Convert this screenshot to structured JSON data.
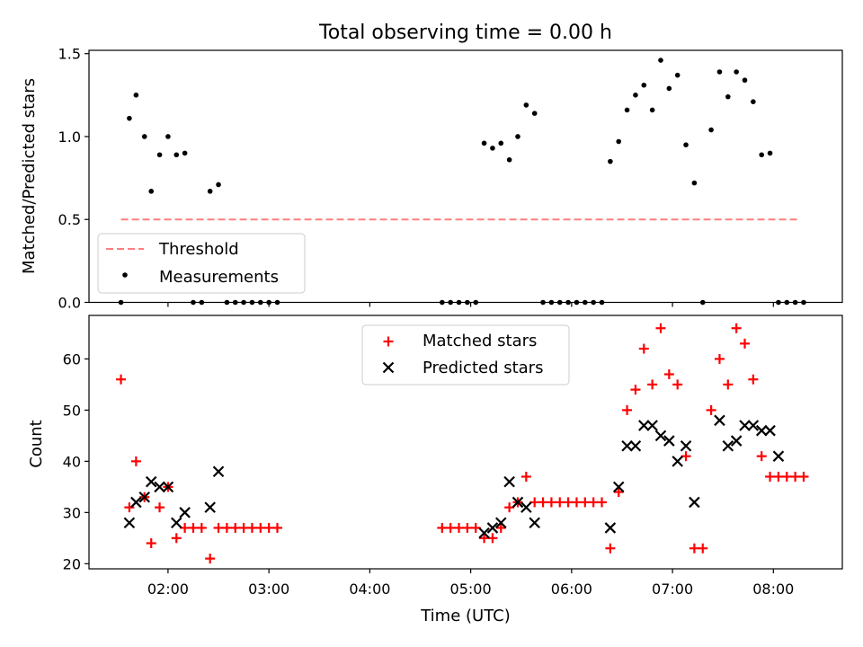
{
  "chart_data": [
    {
      "type": "scatter",
      "title": "Total observing time = 0.00 h",
      "ylabel": "Matched/Predicted stars",
      "xlabel": "",
      "ylim": [
        0,
        1.52
      ],
      "xlim": [
        "01:13",
        "08:41"
      ],
      "yticks": [
        "0.0",
        "0.5",
        "1.0",
        "1.5"
      ],
      "grid": false,
      "legend": {
        "placement": "lower left",
        "entries": [
          "Threshold",
          "Measurements"
        ]
      },
      "threshold": {
        "name": "Threshold",
        "value": 0.5,
        "x": [
          "01:32",
          "08:16"
        ],
        "color": "#ff7f7f",
        "style": "dashed"
      },
      "series": [
        {
          "name": "Measurements",
          "marker": "dot",
          "color": "#000000",
          "x": [
            "01:32",
            "01:37",
            "01:41",
            "01:46",
            "01:50",
            "01:55",
            "02:00",
            "02:05",
            "02:10",
            "02:15",
            "02:20",
            "02:25",
            "02:30",
            "02:35",
            "02:40",
            "02:45",
            "02:50",
            "02:55",
            "03:00",
            "03:05",
            "04:43",
            "04:48",
            "04:53",
            "04:58",
            "05:03",
            "05:08",
            "05:13",
            "05:18",
            "05:23",
            "05:28",
            "05:33",
            "05:38",
            "05:43",
            "05:48",
            "05:53",
            "05:58",
            "06:03",
            "06:08",
            "06:13",
            "06:18",
            "06:23",
            "06:28",
            "06:33",
            "06:38",
            "06:43",
            "06:48",
            "06:53",
            "06:58",
            "07:03",
            "07:08",
            "07:13",
            "07:18",
            "07:23",
            "07:28",
            "07:33",
            "07:38",
            "07:43",
            "07:48",
            "07:53",
            "07:58",
            "08:03",
            "08:08",
            "08:13",
            "08:18"
          ],
          "y": [
            0.0,
            1.11,
            1.25,
            1.0,
            0.67,
            0.89,
            1.0,
            0.89,
            0.9,
            0.0,
            0.0,
            0.67,
            0.71,
            0.0,
            0.0,
            0.0,
            0.0,
            0.0,
            0.0,
            0.0,
            0.0,
            0.0,
            0.0,
            0.0,
            0.0,
            0.96,
            0.93,
            0.96,
            0.86,
            1.0,
            1.19,
            1.14,
            0.0,
            0.0,
            0.0,
            0.0,
            0.0,
            0.0,
            0.0,
            0.0,
            0.85,
            0.97,
            1.16,
            1.25,
            1.31,
            1.16,
            1.46,
            1.29,
            1.37,
            0.95,
            0.72,
            0.0,
            1.04,
            1.39,
            1.24,
            1.39,
            1.34,
            1.21,
            0.89,
            0.9,
            0.0,
            0.0,
            0.0,
            0.0
          ]
        }
      ]
    },
    {
      "type": "scatter",
      "title": "",
      "xlabel": "Time (UTC)",
      "ylabel": "Count",
      "ylim": [
        19,
        68.5
      ],
      "xlim": [
        "01:13",
        "08:41"
      ],
      "yticks": [
        "20",
        "30",
        "40",
        "50",
        "60"
      ],
      "xticks": [
        "02:00",
        "03:00",
        "04:00",
        "05:00",
        "06:00",
        "07:00",
        "08:00"
      ],
      "grid": false,
      "legend": {
        "placement": "upper center",
        "entries": [
          "Matched stars",
          "Predicted stars"
        ]
      },
      "series": [
        {
          "name": "Matched stars",
          "marker": "plus",
          "color": "#ff0000",
          "x": [
            "01:32",
            "01:37",
            "01:41",
            "01:46",
            "01:50",
            "01:55",
            "02:00",
            "02:05",
            "02:10",
            "02:15",
            "02:20",
            "02:25",
            "02:30",
            "02:35",
            "02:40",
            "02:45",
            "02:50",
            "02:55",
            "03:00",
            "03:05",
            "04:43",
            "04:48",
            "04:53",
            "04:58",
            "05:03",
            "05:08",
            "05:13",
            "05:18",
            "05:23",
            "05:28",
            "05:33",
            "05:38",
            "05:43",
            "05:48",
            "05:53",
            "05:58",
            "06:03",
            "06:08",
            "06:13",
            "06:18",
            "06:23",
            "06:28",
            "06:33",
            "06:38",
            "06:43",
            "06:48",
            "06:53",
            "06:58",
            "07:03",
            "07:08",
            "07:13",
            "07:18",
            "07:23",
            "07:28",
            "07:33",
            "07:38",
            "07:43",
            "07:48",
            "07:53",
            "07:58",
            "08:03",
            "08:08",
            "08:13",
            "08:18"
          ],
          "y": [
            56,
            31,
            40,
            33,
            24,
            31,
            35,
            25,
            27,
            27,
            27,
            21,
            27,
            27,
            27,
            27,
            27,
            27,
            27,
            27,
            27,
            27,
            27,
            27,
            27,
            25,
            25,
            27,
            31,
            32,
            37,
            32,
            32,
            32,
            32,
            32,
            32,
            32,
            32,
            32,
            23,
            34,
            50,
            54,
            62,
            55,
            66,
            57,
            55,
            41,
            23,
            23,
            50,
            60,
            55,
            66,
            63,
            56,
            41,
            37,
            37,
            37,
            37,
            37
          ]
        },
        {
          "name": "Predicted stars",
          "marker": "x",
          "color": "#000000",
          "x": [
            "01:37",
            "01:41",
            "01:46",
            "01:50",
            "01:55",
            "02:00",
            "02:05",
            "02:10",
            "02:25",
            "02:30",
            "05:08",
            "05:13",
            "05:18",
            "05:23",
            "05:28",
            "05:33",
            "05:38",
            "06:23",
            "06:28",
            "06:33",
            "06:38",
            "06:43",
            "06:48",
            "06:53",
            "06:58",
            "07:03",
            "07:08",
            "07:13",
            "07:28",
            "07:33",
            "07:38",
            "07:43",
            "07:48",
            "07:53",
            "07:58",
            "08:03"
          ],
          "y": [
            28,
            32,
            33,
            36,
            35,
            35,
            28,
            30,
            31,
            38,
            26,
            27,
            28,
            36,
            32,
            31,
            28,
            27,
            35,
            43,
            43,
            47,
            47,
            45,
            44,
            40,
            43,
            32,
            48,
            43,
            44,
            47,
            47,
            46,
            46,
            41
          ]
        }
      ]
    }
  ]
}
